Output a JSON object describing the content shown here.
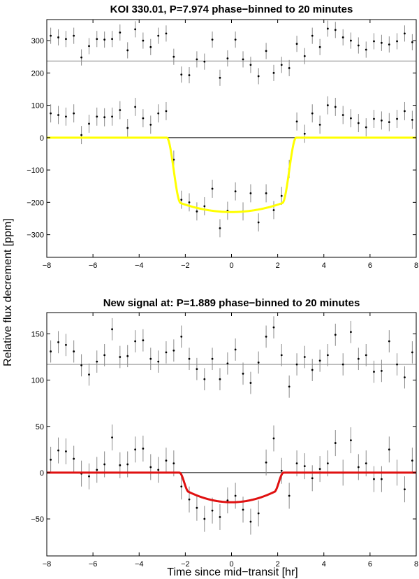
{
  "ylabel": "Relative flux decrement [ppm]",
  "xlabel": "Time since mid−transit [hr]",
  "chart_data": [
    {
      "type": "scatter",
      "title": "KOI 330.01, P=7.974 phase−binned to 20 minutes",
      "xlim": [
        -8,
        8
      ],
      "ylim": [
        -370,
        365
      ],
      "xticks": [
        -8,
        -6,
        -4,
        -2,
        0,
        2,
        4,
        6,
        8
      ],
      "yticks": [
        -300,
        -200,
        -100,
        0,
        100,
        200,
        300
      ],
      "reference_lines": [
        {
          "y": 237,
          "color": "#8c8c8c"
        },
        {
          "y": 0,
          "color": "#000000"
        }
      ],
      "model_color": "#ffff00",
      "model": {
        "depth": 230,
        "half_width": 2.8,
        "flat_half_width": 2.2,
        "curvature": 0.12
      },
      "series": [
        {
          "role": "offset",
          "x": [
            -7.83,
            -7.5,
            -7.17,
            -6.83,
            -6.5,
            -6.17,
            -5.83,
            -5.5,
            -5.17,
            -4.83,
            -4.5,
            -4.17,
            -3.83,
            -3.5,
            -3.17,
            -2.83,
            -2.5,
            -2.17,
            -1.83,
            -1.5,
            -1.17,
            -0.83,
            -0.5,
            -0.17,
            0.17,
            0.5,
            0.83,
            1.17,
            1.5,
            1.83,
            2.17,
            2.5,
            2.83,
            3.17,
            3.5,
            3.83,
            4.17,
            4.5,
            4.83,
            5.17,
            5.5,
            5.83,
            6.17,
            6.5,
            6.83,
            7.17,
            7.5,
            7.83
          ],
          "y": [
            315,
            310,
            305,
            315,
            248,
            283,
            305,
            303,
            305,
            325,
            270,
            335,
            300,
            280,
            315,
            322,
            250,
            195,
            193,
            242,
            235,
            303,
            185,
            245,
            303,
            242,
            225,
            190,
            268,
            200,
            225,
            215,
            290,
            252,
            315,
            280,
            337,
            333,
            310,
            300,
            285,
            272,
            298,
            293,
            288,
            298,
            322,
            295
          ],
          "err": [
            25,
            25,
            25,
            25,
            25,
            25,
            25,
            25,
            25,
            25,
            25,
            25,
            25,
            25,
            25,
            25,
            25,
            25,
            25,
            25,
            25,
            25,
            25,
            25,
            25,
            25,
            25,
            25,
            25,
            25,
            25,
            25,
            25,
            25,
            25,
            25,
            25,
            25,
            25,
            25,
            25,
            25,
            25,
            25,
            25,
            25,
            25,
            25
          ]
        },
        {
          "role": "data",
          "x": [
            -7.83,
            -7.5,
            -7.17,
            -6.83,
            -6.5,
            -6.17,
            -5.83,
            -5.5,
            -5.17,
            -4.83,
            -4.5,
            -4.17,
            -3.83,
            -3.5,
            -3.17,
            -2.83,
            -2.5,
            -2.17,
            -1.83,
            -1.5,
            -1.17,
            -0.83,
            -0.5,
            -0.17,
            0.17,
            0.5,
            0.83,
            1.17,
            1.5,
            1.83,
            2.17,
            2.5,
            2.83,
            3.17,
            3.5,
            3.83,
            4.17,
            4.5,
            4.83,
            5.17,
            5.5,
            5.83,
            6.17,
            6.5,
            6.83,
            7.17,
            7.5,
            7.83
          ],
          "y": [
            75,
            70,
            65,
            75,
            8,
            43,
            65,
            63,
            65,
            85,
            30,
            95,
            60,
            40,
            75,
            82,
            -68,
            -192,
            -200,
            -228,
            -212,
            -158,
            -280,
            -226,
            -166,
            -228,
            -172,
            -262,
            -172,
            -224,
            -180,
            -97,
            50,
            12,
            75,
            40,
            100,
            95,
            70,
            60,
            45,
            32,
            58,
            53,
            48,
            58,
            82,
            55
          ],
          "err": [
            28,
            28,
            28,
            28,
            28,
            28,
            28,
            28,
            28,
            28,
            28,
            28,
            28,
            28,
            28,
            28,
            28,
            28,
            28,
            28,
            28,
            28,
            28,
            28,
            28,
            28,
            28,
            28,
            28,
            28,
            28,
            28,
            28,
            28,
            28,
            28,
            28,
            28,
            28,
            28,
            28,
            28,
            28,
            28,
            28,
            28,
            28,
            28
          ]
        }
      ]
    },
    {
      "type": "scatter",
      "title": "New signal at: P=1.889 phase−binned to 20 minutes",
      "xlim": [
        -8,
        8
      ],
      "ylim": [
        -90,
        173
      ],
      "xticks": [
        -8,
        -6,
        -4,
        -2,
        0,
        2,
        4,
        6,
        8
      ],
      "yticks": [
        -50,
        0,
        50,
        100,
        150
      ],
      "reference_lines": [
        {
          "y": 117,
          "color": "#8c8c8c"
        },
        {
          "y": 0,
          "color": "#000000"
        }
      ],
      "model_color": "#e01010",
      "model": {
        "depth": 32,
        "half_width": 2.25,
        "flat_half_width": 1.85,
        "curvature": 0.35
      },
      "series": [
        {
          "role": "offset",
          "x": [
            -7.83,
            -7.5,
            -7.17,
            -6.83,
            -6.5,
            -6.17,
            -5.83,
            -5.5,
            -5.17,
            -4.83,
            -4.5,
            -4.17,
            -3.83,
            -3.5,
            -3.17,
            -2.83,
            -2.5,
            -2.17,
            -1.83,
            -1.5,
            -1.17,
            -0.83,
            -0.5,
            -0.17,
            0.17,
            0.5,
            0.83,
            1.17,
            1.5,
            1.83,
            2.17,
            2.5,
            2.83,
            3.17,
            3.5,
            3.83,
            4.17,
            4.5,
            4.83,
            5.17,
            5.5,
            5.83,
            6.17,
            6.5,
            6.83,
            7.17,
            7.5,
            7.83
          ],
          "y": [
            131,
            141,
            138,
            131,
            116,
            106,
            120,
            127,
            155,
            125,
            126,
            142,
            143,
            123,
            120,
            130,
            132,
            147,
            123,
            112,
            101,
            123,
            101,
            118,
            133,
            107,
            97,
            119,
            147,
            157,
            127,
            93,
            117,
            125,
            111,
            121,
            127,
            149,
            117,
            152,
            123,
            127,
            109,
            110,
            142,
            117,
            103,
            130
          ],
          "err": [
            12,
            12,
            12,
            12,
            12,
            12,
            12,
            12,
            12,
            12,
            12,
            12,
            12,
            12,
            12,
            12,
            12,
            12,
            12,
            12,
            12,
            12,
            12,
            12,
            12,
            12,
            12,
            12,
            12,
            12,
            12,
            12,
            12,
            12,
            12,
            12,
            12,
            12,
            12,
            12,
            12,
            12,
            12,
            12,
            12,
            12,
            12,
            12
          ]
        },
        {
          "role": "data",
          "x": [
            -7.83,
            -7.5,
            -7.17,
            -6.83,
            -6.5,
            -6.17,
            -5.83,
            -5.5,
            -5.17,
            -4.83,
            -4.5,
            -4.17,
            -3.83,
            -3.5,
            -3.17,
            -2.83,
            -2.5,
            -2.17,
            -1.83,
            -1.5,
            -1.17,
            -0.83,
            -0.5,
            -0.17,
            0.17,
            0.5,
            0.83,
            1.17,
            1.5,
            1.83,
            2.17,
            2.5,
            2.83,
            3.17,
            3.5,
            3.83,
            4.17,
            4.5,
            4.83,
            5.17,
            5.5,
            5.83,
            6.17,
            6.5,
            6.83,
            7.17,
            7.5,
            7.83
          ],
          "y": [
            14,
            24,
            23,
            15,
            -1,
            -4,
            3,
            9,
            38,
            8,
            9,
            25,
            26,
            6,
            3,
            13,
            10,
            -15,
            -29,
            -38,
            -50,
            -41,
            -48,
            -30,
            -25,
            -40,
            -53,
            -44,
            11,
            37,
            2,
            -25,
            10,
            7,
            -6,
            4,
            10,
            32,
            0,
            35,
            6,
            10,
            -7,
            -7,
            25,
            0,
            -18,
            13
          ],
          "err": [
            14,
            14,
            14,
            14,
            14,
            14,
            14,
            14,
            14,
            14,
            14,
            14,
            14,
            14,
            14,
            14,
            14,
            14,
            14,
            14,
            14,
            14,
            14,
            14,
            14,
            14,
            14,
            14,
            14,
            14,
            14,
            14,
            14,
            14,
            14,
            14,
            14,
            14,
            14,
            14,
            14,
            14,
            14,
            14,
            14,
            14,
            14,
            14
          ]
        }
      ]
    }
  ]
}
